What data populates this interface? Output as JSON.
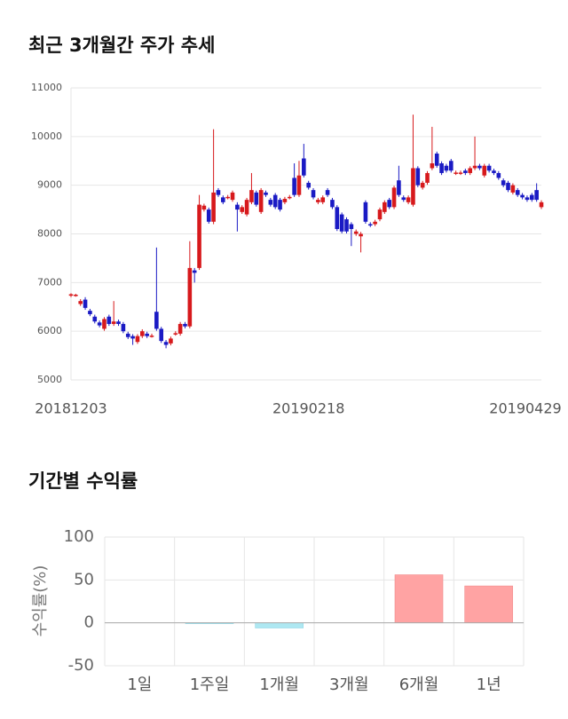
{
  "chart_data": [
    {
      "type": "candlestick",
      "title": "최근 3개월간 주가 추세",
      "categories": [
        "20181203",
        null,
        null,
        null,
        null,
        null,
        null,
        null,
        null,
        null,
        null,
        null,
        null,
        null,
        null,
        null,
        null,
        null,
        null,
        null,
        null,
        null,
        null,
        null,
        null,
        null,
        null,
        null,
        null,
        null,
        null,
        null,
        null,
        null,
        null,
        null,
        null,
        null,
        null,
        null,
        null,
        null,
        null,
        null,
        null,
        null,
        null,
        null,
        null,
        null,
        "20190218",
        null,
        null,
        null,
        null,
        null,
        null,
        null,
        null,
        null,
        null,
        null,
        null,
        null,
        null,
        null,
        null,
        null,
        null,
        null,
        null,
        null,
        null,
        null,
        null,
        null,
        null,
        null,
        null,
        null,
        null,
        null,
        null,
        null,
        null,
        null,
        null,
        null,
        null,
        null,
        null,
        null,
        null,
        null,
        null,
        null,
        null,
        null,
        null,
        "20190429"
      ],
      "open": [
        6730,
        6740,
        6560,
        6650,
        6420,
        6300,
        6180,
        6050,
        6300,
        6150,
        6200,
        6150,
        5950,
        5900,
        5780,
        5900,
        5950,
        5900,
        6400,
        6050,
        5780,
        5750,
        5950,
        5950,
        6150,
        6100,
        7250,
        7300,
        8500,
        8500,
        8250,
        8900,
        8750,
        8750,
        8700,
        8600,
        8450,
        8400,
        8650,
        8850,
        8450,
        8850,
        8700,
        8800,
        8700,
        8650,
        8750,
        9150,
        8800,
        9550,
        9050,
        8900,
        8650,
        8650,
        8900,
        8700,
        8550,
        8400,
        8300,
        8200,
        8000,
        7950,
        8650,
        8200,
        8200,
        8300,
        8450,
        8700,
        8550,
        9100,
        8750,
        8650,
        8600,
        9350,
        8950,
        9050,
        9350,
        9650,
        9450,
        9400,
        9500,
        9250,
        9250,
        9300,
        9250,
        9350,
        9400,
        9200,
        9400,
        9300,
        9250,
        9100,
        9050,
        8850,
        8900,
        8800,
        8750,
        8800,
        8900,
        8550
      ],
      "high": [
        6780,
        6770,
        6660,
        6700,
        6460,
        6340,
        6220,
        6290,
        6340,
        6620,
        6240,
        6190,
        5990,
        5940,
        5940,
        6040,
        5990,
        5950,
        7720,
        6090,
        5820,
        5890,
        6000,
        6190,
        6190,
        7850,
        7300,
        8800,
        8620,
        8540,
        10150,
        8940,
        8790,
        8800,
        8890,
        8650,
        8590,
        8740,
        9250,
        8890,
        8940,
        8890,
        8740,
        8840,
        8740,
        8760,
        8800,
        9450,
        9500,
        9850,
        9090,
        8940,
        8740,
        8790,
        8940,
        8740,
        8590,
        8440,
        8340,
        8240,
        8090,
        8040,
        8690,
        8240,
        8290,
        8540,
        8690,
        8740,
        8990,
        9400,
        8790,
        8790,
        10450,
        9390,
        9090,
        9290,
        10200,
        9690,
        9490,
        9440,
        9540,
        9300,
        9300,
        9340,
        9390,
        10000,
        9440,
        9440,
        9440,
        9340,
        9290,
        9140,
        9090,
        9040,
        8940,
        8840,
        8790,
        8840,
        9040,
        8690
      ],
      "low": [
        6700,
        6710,
        6520,
        6440,
        6310,
        6160,
        6080,
        6010,
        6110,
        6110,
        6110,
        5960,
        5840,
        5720,
        5740,
        5860,
        5860,
        5870,
        6010,
        5760,
        5650,
        5710,
        5910,
        5910,
        6060,
        6060,
        7000,
        7260,
        8460,
        8210,
        8200,
        8760,
        8610,
        8710,
        8660,
        8050,
        8410,
        8360,
        8610,
        8560,
        8410,
        8760,
        8560,
        8510,
        8460,
        8610,
        8710,
        8760,
        8760,
        9160,
        8910,
        8710,
        8610,
        8610,
        8760,
        8510,
        8060,
        8010,
        8010,
        7750,
        7960,
        7620,
        8210,
        8140,
        8160,
        8260,
        8410,
        8510,
        8510,
        8760,
        8660,
        8610,
        8560,
        8960,
        8910,
        9010,
        9310,
        9360,
        9210,
        9260,
        9260,
        9210,
        9210,
        9210,
        9210,
        9310,
        9310,
        9160,
        9260,
        9210,
        9110,
        8960,
        8860,
        8810,
        8760,
        8710,
        8660,
        8660,
        8660,
        8510
      ],
      "close": [
        6760,
        6750,
        6620,
        6480,
        6350,
        6200,
        6120,
        6250,
        6150,
        6200,
        6150,
        6000,
        5880,
        5850,
        5900,
        6000,
        5900,
        5910,
        6050,
        5800,
        5720,
        5850,
        5960,
        6150,
        6100,
        7300,
        7200,
        8600,
        8580,
        8250,
        8850,
        8800,
        8650,
        8760,
        8850,
        8500,
        8550,
        8700,
        8900,
        8600,
        8900,
        8800,
        8600,
        8550,
        8500,
        8720,
        8760,
        8800,
        9200,
        9200,
        8950,
        8750,
        8700,
        8750,
        8800,
        8550,
        8100,
        8050,
        8050,
        8100,
        8050,
        8000,
        8250,
        8180,
        8250,
        8500,
        8650,
        8550,
        8950,
        8800,
        8700,
        8750,
        9350,
        9000,
        9050,
        9250,
        9450,
        9400,
        9250,
        9300,
        9300,
        9260,
        9260,
        9250,
        9350,
        9400,
        9350,
        9400,
        9300,
        9250,
        9150,
        9000,
        8900,
        9000,
        8800,
        8750,
        8700,
        8700,
        8700,
        8650
      ],
      "up_color": "#d7191c",
      "down_color": "#1a1ac4",
      "ylim": [
        5000,
        11000
      ],
      "yticks": [
        5000,
        6000,
        7000,
        8000,
        9000,
        10000,
        11000
      ],
      "grid": true
    },
    {
      "type": "bar",
      "title": "기간별 수익률",
      "y_label": "수익률(%)",
      "categories": [
        "1일",
        "1주일",
        "1개월",
        "3개월",
        "6개월",
        "1년"
      ],
      "values": [
        0,
        -1,
        -6,
        0,
        56,
        43
      ],
      "positive_color": "#ffa3a3",
      "negative_color": "#aee8f2",
      "ylim": [
        -50,
        100
      ],
      "yticks": [
        -50,
        0,
        50,
        100
      ],
      "grid": true
    }
  ]
}
